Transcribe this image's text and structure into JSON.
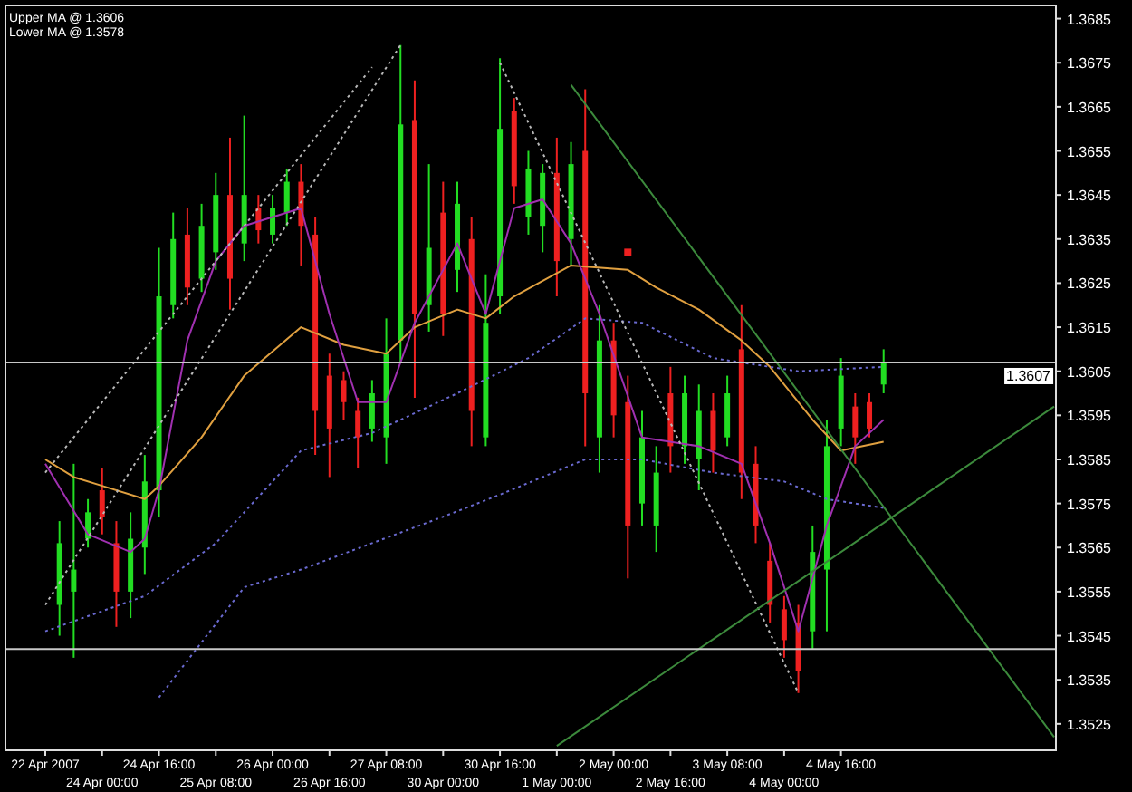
{
  "chart_data": {
    "type": "candlestick",
    "annotations": [
      "Upper MA @ 1.3606",
      "Lower MA @ 1.3578"
    ],
    "categories": [
      "22 Apr 2007",
      null,
      null,
      null,
      "24 Apr 00:00",
      null,
      null,
      null,
      "24 Apr 16:00",
      null,
      null,
      null,
      "25 Apr 08:00",
      null,
      null,
      null,
      "26 Apr 00:00",
      null,
      null,
      null,
      "26 Apr 16:00",
      null,
      null,
      null,
      "27 Apr 08:00",
      null,
      null,
      null,
      "30 Apr 00:00",
      null,
      null,
      null,
      "30 Apr 16:00",
      null,
      null,
      null,
      "1 May 00:00",
      null,
      null,
      null,
      "2 May 00:00",
      null,
      null,
      null,
      "2 May 16:00",
      null,
      null,
      null,
      "3 May 08:00",
      null,
      null,
      null,
      "4 May 00:00",
      null,
      null,
      null,
      "4 May 16:00",
      null,
      null,
      null,
      null,
      null,
      null,
      null,
      null,
      null,
      null,
      null,
      null,
      null,
      null,
      null
    ],
    "ohlc": [
      null,
      [
        1.3552,
        1.3571,
        1.3545,
        1.3566
      ],
      [
        1.3555,
        1.3584,
        1.354,
        1.356
      ],
      [
        1.3567,
        1.3576,
        1.3565,
        1.3573
      ],
      [
        1.3578,
        1.3583,
        1.3568,
        1.3572
      ],
      [
        1.3566,
        1.3571,
        1.3547,
        1.3555
      ],
      [
        1.3555,
        1.3573,
        1.3549,
        1.3567
      ],
      [
        1.3565,
        1.3586,
        1.3559,
        1.358
      ],
      [
        1.3578,
        1.3633,
        1.3572,
        1.3622
      ],
      [
        1.362,
        1.3641,
        1.3617,
        1.3635
      ],
      [
        1.3636,
        1.3642,
        1.362,
        1.3624
      ],
      [
        1.3626,
        1.3643,
        1.3623,
        1.3638
      ],
      [
        1.3632,
        1.365,
        1.3628,
        1.3645
      ],
      [
        1.3645,
        1.3658,
        1.3619,
        1.3626
      ],
      [
        1.3634,
        1.3663,
        1.363,
        1.3645
      ],
      [
        1.3642,
        1.3645,
        1.3634,
        1.3637
      ],
      [
        1.3636,
        1.3645,
        1.3634,
        1.3642
      ],
      [
        1.3641,
        1.3651,
        1.3638,
        1.3648
      ],
      [
        1.3648,
        1.3652,
        1.3629,
        1.3638
      ],
      [
        1.3636,
        1.364,
        1.3586,
        1.3596
      ],
      [
        1.3604,
        1.3609,
        1.3581,
        1.3592
      ],
      [
        1.3603,
        1.3605,
        1.3594,
        1.3598
      ],
      [
        1.3596,
        1.3599,
        1.3583,
        1.359
      ],
      [
        1.3592,
        1.3603,
        1.3589,
        1.36
      ],
      [
        1.359,
        1.3617,
        1.3584,
        1.3609
      ],
      [
        1.3612,
        1.3679,
        1.3607,
        1.3661
      ],
      [
        1.3662,
        1.3671,
        1.3599,
        1.3618
      ],
      [
        1.362,
        1.3652,
        1.3614,
        1.3633
      ],
      [
        1.3641,
        1.3648,
        1.3613,
        1.3618
      ],
      [
        1.3628,
        1.3648,
        1.3623,
        1.3643
      ],
      [
        1.3635,
        1.364,
        1.3588,
        1.3596
      ],
      [
        1.359,
        1.3627,
        1.3588,
        1.3616
      ],
      [
        1.3622,
        1.3676,
        1.3618,
        1.366
      ],
      [
        1.3664,
        1.3667,
        1.3643,
        1.3647
      ],
      [
        1.364,
        1.3655,
        1.3636,
        1.3651
      ],
      [
        1.3638,
        1.3652,
        1.3632,
        1.365
      ],
      [
        1.365,
        1.3658,
        1.3622,
        1.363
      ],
      [
        1.3635,
        1.3657,
        1.3629,
        1.3652
      ],
      [
        1.3655,
        1.3669,
        1.3588,
        1.36
      ],
      [
        1.359,
        1.362,
        1.3582,
        1.3612
      ],
      [
        1.3612,
        1.3616,
        1.359,
        1.3595
      ],
      [
        1.3598,
        1.3604,
        1.3558,
        1.357
      ],
      [
        1.3575,
        1.3596,
        1.357,
        1.359
      ],
      [
        1.357,
        1.3588,
        1.3564,
        1.3582
      ],
      [
        1.36,
        1.3606,
        1.3582,
        1.3588
      ],
      [
        1.3588,
        1.3604,
        1.3584,
        1.36
      ],
      [
        1.3585,
        1.3602,
        1.3578,
        1.3596
      ],
      [
        1.3596,
        1.36,
        1.3582,
        1.3587
      ],
      [
        1.359,
        1.3604,
        1.3588,
        1.36
      ],
      [
        1.361,
        1.362,
        1.3576,
        1.3582
      ],
      [
        1.3584,
        1.3588,
        1.3566,
        1.357
      ],
      [
        1.3562,
        1.3566,
        1.3548,
        1.3552
      ],
      [
        1.3551,
        1.3554,
        1.354,
        1.3544
      ],
      [
        1.3548,
        1.3552,
        1.3532,
        1.3537
      ],
      [
        1.3546,
        1.357,
        1.3542,
        1.3564
      ],
      [
        1.356,
        1.3594,
        1.3546,
        1.3588
      ],
      [
        1.3592,
        1.3608,
        1.3588,
        1.3604
      ],
      [
        1.3597,
        1.36,
        1.3584,
        1.359
      ],
      [
        1.3598,
        1.36,
        1.359,
        1.3592
      ],
      [
        1.3602,
        1.361,
        1.36,
        1.3607
      ],
      null,
      null,
      null,
      null,
      null,
      null,
      null,
      null,
      null,
      null,
      null,
      null
    ],
    "colors": [
      null,
      "#22dd22",
      "#22dd22",
      "#22dd22",
      "#ee2020",
      "#ee2020",
      "#22dd22",
      "#22dd22",
      "#22dd22",
      "#22dd22",
      "#ee2020",
      "#22dd22",
      "#22dd22",
      "#ee2020",
      "#22dd22",
      "#ee2020",
      "#22dd22",
      "#22dd22",
      "#ee2020",
      "#ee2020",
      "#ee2020",
      "#ee2020",
      "#ee2020",
      "#22dd22",
      "#22dd22",
      "#22dd22",
      "#ee2020",
      "#22dd22",
      "#ee2020",
      "#22dd22",
      "#ee2020",
      "#22dd22",
      "#22dd22",
      "#ee2020",
      "#22dd22",
      "#22dd22",
      "#ee2020",
      "#22dd22",
      "#ee2020",
      "#22dd22",
      "#ee2020",
      "#ee2020",
      "#22dd22",
      "#22dd22",
      "#ee2020",
      "#22dd22",
      "#22dd22",
      "#ee2020",
      "#22dd22",
      "#ee2020",
      "#ee2020",
      "#ee2020",
      "#ee2020",
      "#ee2020",
      "#22dd22",
      "#22dd22",
      "#22dd22",
      "#ee2020",
      "#ee2020",
      "#22dd22",
      null,
      null,
      null,
      null,
      null,
      null,
      null,
      null,
      null,
      null,
      null,
      null
    ],
    "series": [
      {
        "type": "line",
        "color": "#e0a040",
        "line_style": "solid",
        "values": [
          1.3585,
          null,
          1.3581,
          null,
          1.3579,
          null,
          null,
          1.3576,
          1.3579,
          null,
          null,
          1.359,
          null,
          null,
          1.3604,
          null,
          null,
          null,
          1.3615,
          null,
          null,
          1.3611,
          null,
          null,
          1.3609,
          null,
          1.3615,
          null,
          null,
          1.3619,
          null,
          1.3617,
          null,
          1.3622,
          null,
          null,
          null,
          1.3629,
          null,
          null,
          null,
          1.3628,
          null,
          1.3624,
          null,
          null,
          1.3619,
          null,
          null,
          1.3612,
          null,
          1.3606,
          null,
          null,
          1.3594,
          null,
          1.3587,
          null,
          null,
          1.3589,
          null,
          null,
          null,
          null,
          null,
          null,
          null,
          null,
          null,
          null,
          null,
          null
        ]
      },
      {
        "type": "line",
        "color": "#a030b0",
        "line_style": "solid",
        "values": [
          1.3584,
          null,
          null,
          1.3568,
          null,
          null,
          1.3564,
          1.3567,
          1.3578,
          null,
          1.3612,
          null,
          1.363,
          null,
          1.3638,
          null,
          null,
          null,
          1.3642,
          null,
          1.3618,
          null,
          1.3598,
          null,
          1.3598,
          null,
          1.3616,
          null,
          null,
          1.3634,
          null,
          1.3618,
          null,
          1.3642,
          null,
          1.3644,
          null,
          1.3634,
          null,
          1.3618,
          null,
          null,
          1.359,
          null,
          null,
          null,
          1.3588,
          null,
          null,
          1.3584,
          null,
          1.3566,
          null,
          1.3546,
          null,
          1.357,
          null,
          1.3588,
          null,
          1.3594,
          null,
          null,
          null,
          null,
          null,
          null,
          null,
          null,
          null,
          null,
          null,
          null
        ]
      },
      {
        "type": "line",
        "color": "#6a6ad0",
        "line_style": "dotted",
        "values": [
          1.3546,
          null,
          null,
          null,
          null,
          null,
          null,
          1.3554,
          null,
          null,
          null,
          null,
          1.3566,
          null,
          null,
          null,
          null,
          null,
          1.3587,
          null,
          null,
          null,
          null,
          1.3591,
          null,
          null,
          null,
          null,
          null,
          1.36,
          null,
          null,
          null,
          null,
          1.3608,
          null,
          null,
          null,
          1.3617,
          null,
          null,
          null,
          1.3616,
          null,
          null,
          null,
          null,
          1.3608,
          null,
          null,
          null,
          null,
          null,
          1.3605,
          null,
          null,
          null,
          null,
          null,
          1.3606,
          null,
          null,
          null,
          null,
          null,
          null,
          null,
          null,
          null,
          null,
          null,
          null
        ]
      },
      {
        "type": "line",
        "color": "#6a6ad0",
        "line_style": "dotted",
        "values": [
          null,
          null,
          null,
          null,
          null,
          null,
          null,
          null,
          1.3531,
          null,
          null,
          null,
          null,
          null,
          1.3556,
          null,
          null,
          null,
          1.356,
          null,
          null,
          null,
          null,
          1.3566,
          null,
          null,
          null,
          null,
          1.3572,
          null,
          null,
          null,
          1.3577,
          null,
          null,
          null,
          null,
          null,
          1.3585,
          null,
          null,
          null,
          1.3585,
          null,
          null,
          null,
          null,
          1.3582,
          null,
          null,
          null,
          null,
          1.358,
          null,
          null,
          1.3576,
          null,
          null,
          null,
          1.3574,
          null,
          null,
          null,
          null,
          null,
          null,
          null,
          null,
          null,
          null,
          null,
          null
        ]
      },
      {
        "type": "line",
        "color": "#b8b8b8",
        "line_style": "dotted",
        "values": [
          1.3552,
          null,
          null,
          null,
          null,
          null,
          null,
          null,
          null,
          null,
          null,
          null,
          null,
          null,
          null,
          null,
          null,
          null,
          null,
          null,
          null,
          null,
          null,
          null,
          null,
          1.3679,
          null,
          null,
          null,
          null,
          null,
          null,
          null,
          null,
          null,
          null,
          null,
          null,
          null,
          null,
          null,
          null,
          null,
          null,
          null,
          null,
          null,
          null,
          null,
          null,
          null,
          null,
          null,
          null,
          null,
          null,
          null,
          null,
          null,
          null,
          null,
          null,
          null,
          null,
          null,
          null,
          null,
          null,
          null,
          null,
          null,
          null
        ]
      },
      {
        "type": "line",
        "color": "#b8b8b8",
        "line_style": "dotted",
        "values": [
          1.3582,
          null,
          null,
          null,
          null,
          null,
          null,
          null,
          null,
          null,
          null,
          null,
          null,
          null,
          null,
          null,
          null,
          null,
          null,
          null,
          null,
          null,
          null,
          1.3674,
          null,
          null,
          null,
          null,
          null,
          null,
          null,
          null,
          null,
          null,
          null,
          null,
          null,
          null,
          null,
          null,
          null,
          null,
          null,
          null,
          null,
          null,
          null,
          null,
          null,
          null,
          null,
          null,
          null,
          null,
          null,
          null,
          null,
          null,
          null,
          null,
          null,
          null,
          null,
          null,
          null,
          null,
          null,
          null,
          null,
          null,
          null,
          null
        ]
      },
      {
        "type": "line",
        "color": "#b8b8b8",
        "line_style": "dotted",
        "values": [
          null,
          null,
          null,
          null,
          null,
          null,
          null,
          null,
          null,
          null,
          null,
          null,
          null,
          null,
          null,
          null,
          null,
          null,
          null,
          null,
          null,
          null,
          null,
          null,
          null,
          null,
          null,
          null,
          null,
          null,
          null,
          null,
          1.3675,
          null,
          null,
          null,
          null,
          null,
          null,
          null,
          null,
          null,
          null,
          null,
          null,
          null,
          null,
          null,
          null,
          null,
          null,
          null,
          null,
          1.3532,
          null,
          null,
          null,
          null,
          null,
          null,
          null,
          null,
          null,
          null,
          null,
          null,
          null,
          null,
          null,
          null,
          null,
          null
        ]
      },
      {
        "type": "line",
        "color": "#3c8a3c",
        "line_style": "solid",
        "values": [
          null,
          null,
          null,
          null,
          null,
          null,
          null,
          null,
          null,
          null,
          null,
          null,
          null,
          null,
          null,
          null,
          null,
          null,
          null,
          null,
          null,
          null,
          null,
          null,
          null,
          null,
          null,
          null,
          null,
          null,
          null,
          null,
          null,
          null,
          null,
          null,
          null,
          1.367,
          null,
          null,
          null,
          null,
          null,
          null,
          null,
          null,
          null,
          null,
          null,
          null,
          null,
          null,
          null,
          null,
          null,
          null,
          null,
          null,
          null,
          null,
          null,
          null,
          null,
          null,
          null,
          null,
          null,
          null,
          null,
          null,
          null,
          1.3522
        ]
      },
      {
        "type": "line",
        "color": "#3c8a3c",
        "line_style": "solid",
        "values": [
          null,
          null,
          null,
          null,
          null,
          null,
          null,
          null,
          null,
          null,
          null,
          null,
          null,
          null,
          null,
          null,
          null,
          null,
          null,
          null,
          null,
          null,
          null,
          null,
          null,
          null,
          null,
          null,
          null,
          null,
          null,
          null,
          null,
          null,
          null,
          null,
          1.352,
          null,
          null,
          null,
          null,
          null,
          null,
          null,
          null,
          null,
          null,
          null,
          null,
          null,
          null,
          null,
          null,
          null,
          null,
          null,
          null,
          null,
          null,
          null,
          null,
          null,
          null,
          null,
          null,
          null,
          null,
          null,
          null,
          null,
          null,
          1.3597
        ]
      },
      {
        "type": "scatter",
        "color": "#ee2020",
        "marker": "square",
        "values": [
          null,
          null,
          null,
          null,
          null,
          null,
          null,
          null,
          null,
          null,
          null,
          null,
          null,
          null,
          null,
          null,
          null,
          null,
          null,
          null,
          null,
          null,
          null,
          null,
          null,
          null,
          null,
          null,
          null,
          null,
          null,
          null,
          null,
          null,
          null,
          null,
          null,
          null,
          null,
          null,
          null,
          1.3632,
          null,
          null,
          null,
          null,
          null,
          null,
          null,
          null,
          null,
          null,
          null,
          null,
          null,
          null,
          null,
          null,
          null,
          null,
          null,
          null,
          null,
          null,
          null,
          null,
          null,
          null,
          null,
          null,
          null,
          null
        ]
      }
    ],
    "ref_lines": [
      {
        "axis": "y",
        "value": 1.3607,
        "label": "1.3607",
        "color": "#c8c8c8"
      },
      {
        "axis": "y",
        "value": 1.3542,
        "color": "#c8c8c8"
      }
    ],
    "ylim": [
      1.3519,
      1.3688
    ],
    "yticks": [
      1.3525,
      1.3535,
      1.3545,
      1.3555,
      1.3565,
      1.3575,
      1.3585,
      1.3595,
      1.3605,
      1.3615,
      1.3625,
      1.3635,
      1.3645,
      1.3655,
      1.3665,
      1.3675,
      1.3685
    ],
    "grid": false
  }
}
